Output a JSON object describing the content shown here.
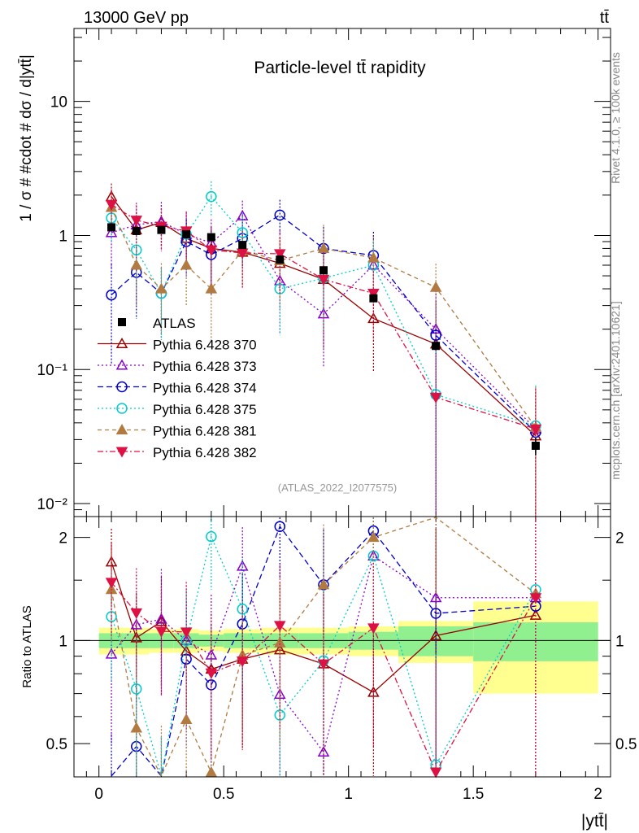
{
  "header": {
    "left_label": "13000 GeV pp",
    "right_label": "tt̄"
  },
  "side_labels": {
    "rivet": "Rivet 4.1.0, ≥ 100k events",
    "mcplots": "mcplots.cern.ch [arXiv:2401.10621]"
  },
  "analysis_id": "(ATLAS_2022_I2077575)",
  "colors": {
    "band_inner": "#90f090",
    "band_outer": "#ffff90",
    "frame": "#000000"
  },
  "chart_data": {
    "type": "scatter",
    "title": "Particle-level tt̄ rapidity",
    "xlabel": "|ytt̄|",
    "ylabel": "1 / σ # #cdot # dσ / d|ytt̄|",
    "ratio_ylabel": "Ratio to ATLAS",
    "xlim": [
      -0.1,
      2.05
    ],
    "ylim_log": [
      0.008,
      35
    ],
    "ratio_ylim": [
      0.4,
      2.3
    ],
    "x_ticks": [
      "0",
      "0.5",
      "1",
      "1.5",
      "2"
    ],
    "x_tick_values": [
      0,
      0.5,
      1,
      1.5,
      2
    ],
    "y_ticks": [
      {
        "value": 0.01,
        "label": "10⁻²"
      },
      {
        "value": 0.1,
        "label": "10⁻¹"
      },
      {
        "value": 1,
        "label": "1"
      },
      {
        "value": 10,
        "label": "10"
      }
    ],
    "ratio_ticks": [
      {
        "value": 0.5,
        "label": "0.5"
      },
      {
        "value": 1,
        "label": "1"
      },
      {
        "value": 2,
        "label": "2"
      }
    ],
    "bin_edges": [
      0,
      0.1,
      0.2,
      0.3,
      0.4,
      0.5,
      0.65,
      0.8,
      1.0,
      1.2,
      1.5,
      2.0
    ],
    "x": [
      0.05,
      0.15,
      0.25,
      0.35,
      0.45,
      0.575,
      0.725,
      0.9,
      1.1,
      1.35,
      1.75
    ],
    "data": {
      "name": "ATLAS",
      "values": [
        1.15,
        1.08,
        1.1,
        1.02,
        0.97,
        0.85,
        0.66,
        0.55,
        0.34,
        0.15,
        0.027
      ],
      "errors": [
        0.05,
        0.05,
        0.05,
        0.04,
        0.04,
        0.04,
        0.03,
        0.03,
        0.02,
        0.01,
        0.004
      ],
      "band_inner": [
        0.05,
        0.05,
        0.05,
        0.05,
        0.04,
        0.05,
        0.05,
        0.05,
        0.06,
        0.1,
        0.13
      ],
      "band_outer": [
        0.09,
        0.09,
        0.08,
        0.08,
        0.07,
        0.08,
        0.09,
        0.09,
        0.1,
        0.14,
        0.3
      ]
    },
    "series": [
      {
        "name": "Pythia 6.428 370",
        "color": "#990000",
        "dash": "",
        "marker": "triangle-up-open",
        "values": [
          1.95,
          1.1,
          1.25,
          0.95,
          0.8,
          0.75,
          0.62,
          0.47,
          0.24,
          0.155,
          0.032
        ],
        "errors_rel": [
          0.25,
          0.35,
          0.35,
          0.4,
          0.45,
          0.45,
          0.55,
          0.7,
          0.6,
          1.05,
          1.0
        ]
      },
      {
        "name": "Pythia 6.428 373",
        "color": "#8800cc",
        "dash": "2,3",
        "marker": "triangle-up-open",
        "values": [
          1.05,
          1.2,
          1.27,
          1.02,
          0.88,
          1.4,
          0.46,
          0.26,
          0.6,
          0.2,
          0.036
        ],
        "errors_rel": [
          0.45,
          0.4,
          0.4,
          0.45,
          0.5,
          0.3,
          0.6,
          0.6,
          0.5,
          1.05,
          1.0
        ]
      },
      {
        "name": "Pythia 6.428 374",
        "color": "#0000cc",
        "dash": "7,4",
        "marker": "circle-open",
        "values": [
          0.36,
          0.53,
          0.37,
          0.9,
          0.72,
          0.95,
          1.42,
          0.8,
          0.71,
          0.18,
          0.034
        ],
        "errors_rel": [
          0.7,
          0.55,
          0.55,
          0.45,
          0.5,
          0.4,
          0.3,
          0.45,
          0.5,
          1.05,
          1.0
        ]
      },
      {
        "name": "Pythia 6.428 375",
        "color": "#00cccc",
        "dash": "2,3",
        "marker": "circle-open",
        "values": [
          1.35,
          0.78,
          0.37,
          1.02,
          1.95,
          1.05,
          0.4,
          0.48,
          0.6,
          0.065,
          0.038
        ],
        "errors_rel": [
          0.35,
          0.45,
          0.55,
          0.4,
          0.3,
          0.4,
          0.55,
          0.6,
          0.5,
          1.1,
          1.0
        ]
      },
      {
        "name": "Pythia 6.428 381",
        "color": "#b07a40",
        "dash": "5,4",
        "marker": "triangle-up-filled",
        "values": [
          1.62,
          0.6,
          0.4,
          0.6,
          0.4,
          0.77,
          0.65,
          0.8,
          0.68,
          0.41,
          0.037
        ],
        "errors_rel": [
          0.3,
          0.5,
          0.55,
          0.5,
          0.6,
          0.4,
          0.5,
          0.5,
          0.45,
          0.5,
          1.0
        ]
      },
      {
        "name": "Pythia 6.428 382",
        "color": "#dd1144",
        "dash": "7,3,2,3",
        "marker": "triangle-down-filled",
        "values": [
          1.7,
          1.3,
          1.17,
          1.08,
          0.78,
          0.74,
          0.73,
          0.47,
          0.37,
          0.062,
          0.036
        ],
        "errors_rel": [
          0.3,
          0.35,
          0.35,
          0.4,
          0.45,
          0.45,
          0.5,
          0.6,
          0.55,
          1.1,
          1.0
        ]
      }
    ]
  }
}
